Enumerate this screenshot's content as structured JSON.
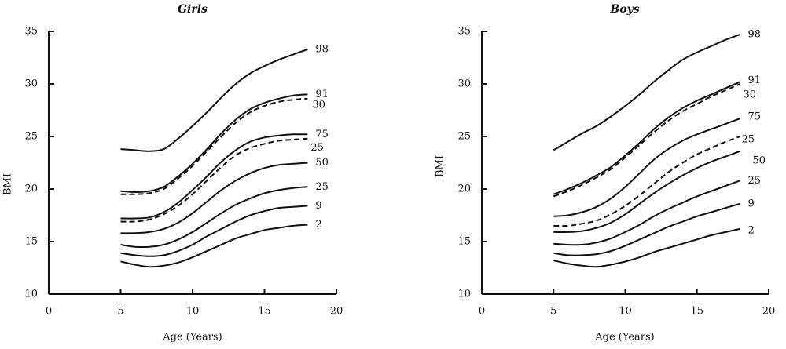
{
  "chart_data": [
    {
      "type": "line",
      "title": "Girls",
      "xlabel": "Age (Years)",
      "ylabel": "BMI",
      "xlim": [
        0,
        20
      ],
      "ylim": [
        10,
        35
      ],
      "x_ticks": [
        "0",
        "5",
        "10",
        "15",
        "20"
      ],
      "y_ticks": [
        "10",
        "15",
        "20",
        "25",
        "30",
        "35"
      ],
      "x": [
        5,
        6,
        7,
        8,
        9,
        10,
        11,
        12,
        13,
        14,
        15,
        16,
        17,
        18
      ],
      "series": [
        {
          "name": "98",
          "style": "solid",
          "values": [
            23.8,
            23.7,
            23.6,
            23.8,
            24.8,
            26.0,
            27.3,
            28.7,
            30.0,
            31.0,
            31.7,
            32.3,
            32.8,
            33.3
          ]
        },
        {
          "name": "91",
          "style": "solid",
          "values": [
            19.8,
            19.7,
            19.8,
            20.2,
            21.2,
            22.4,
            23.8,
            25.3,
            26.6,
            27.6,
            28.2,
            28.6,
            28.9,
            29.0
          ]
        },
        {
          "name": "30",
          "style": "dashed",
          "values": [
            19.5,
            19.5,
            19.6,
            20.0,
            21.0,
            22.2,
            23.6,
            25.0,
            26.3,
            27.3,
            27.9,
            28.3,
            28.5,
            28.6
          ]
        },
        {
          "name": "75",
          "style": "solid",
          "values": [
            17.2,
            17.2,
            17.3,
            17.8,
            18.7,
            19.9,
            21.2,
            22.6,
            23.7,
            24.5,
            24.9,
            25.1,
            25.2,
            25.2
          ]
        },
        {
          "name": "25",
          "style": "dashed",
          "values": [
            16.9,
            16.9,
            17.1,
            17.6,
            18.4,
            19.5,
            20.8,
            22.1,
            23.2,
            23.9,
            24.3,
            24.6,
            24.7,
            24.8
          ]
        },
        {
          "name": "50",
          "style": "solid",
          "values": [
            15.8,
            15.8,
            15.9,
            16.2,
            16.8,
            17.7,
            18.8,
            19.9,
            20.8,
            21.5,
            22.0,
            22.3,
            22.4,
            22.5
          ]
        },
        {
          "name": "25",
          "style": "solid",
          "values": [
            14.7,
            14.5,
            14.5,
            14.7,
            15.2,
            15.9,
            16.8,
            17.7,
            18.5,
            19.1,
            19.6,
            19.9,
            20.1,
            20.2
          ]
        },
        {
          "name": "9",
          "style": "solid",
          "values": [
            13.9,
            13.7,
            13.6,
            13.7,
            14.1,
            14.7,
            15.5,
            16.2,
            16.9,
            17.5,
            17.9,
            18.2,
            18.3,
            18.4
          ]
        },
        {
          "name": "2",
          "style": "solid",
          "values": [
            13.1,
            12.8,
            12.6,
            12.7,
            13.0,
            13.5,
            14.1,
            14.7,
            15.3,
            15.7,
            16.1,
            16.3,
            16.5,
            16.6
          ]
        }
      ]
    },
    {
      "type": "line",
      "title": "Boys",
      "xlabel": "Age (Years)",
      "ylabel": "BMI",
      "xlim": [
        0,
        20
      ],
      "ylim": [
        10,
        35
      ],
      "x_ticks": [
        "0",
        "5",
        "10",
        "15",
        "20"
      ],
      "y_ticks": [
        "10",
        "15",
        "20",
        "25",
        "30",
        "35"
      ],
      "x": [
        5,
        6,
        7,
        8,
        9,
        10,
        11,
        12,
        13,
        14,
        15,
        16,
        17,
        18
      ],
      "series": [
        {
          "name": "98",
          "style": "solid",
          "values": [
            23.7,
            24.5,
            25.3,
            26.0,
            26.9,
            27.9,
            29.0,
            30.2,
            31.3,
            32.3,
            33.0,
            33.6,
            34.2,
            34.7
          ]
        },
        {
          "name": "91",
          "style": "solid",
          "values": [
            19.5,
            20.0,
            20.6,
            21.3,
            22.1,
            23.2,
            24.4,
            25.7,
            26.8,
            27.7,
            28.4,
            29.0,
            29.6,
            30.2
          ]
        },
        {
          "name": "30",
          "style": "dashed",
          "values": [
            19.3,
            19.8,
            20.4,
            21.1,
            21.9,
            23.0,
            24.2,
            25.4,
            26.5,
            27.4,
            28.1,
            28.8,
            29.4,
            30.0
          ]
        },
        {
          "name": "75",
          "style": "solid",
          "values": [
            17.4,
            17.5,
            17.8,
            18.3,
            19.1,
            20.2,
            21.5,
            22.8,
            23.8,
            24.6,
            25.2,
            25.7,
            26.2,
            26.7
          ]
        },
        {
          "name": "25",
          "style": "dashed",
          "values": [
            16.5,
            16.5,
            16.7,
            17.0,
            17.6,
            18.4,
            19.4,
            20.5,
            21.6,
            22.5,
            23.3,
            23.9,
            24.5,
            25.0
          ]
        },
        {
          "name": "50",
          "style": "solid",
          "values": [
            15.9,
            15.9,
            16.0,
            16.3,
            16.8,
            17.6,
            18.6,
            19.6,
            20.5,
            21.3,
            22.0,
            22.6,
            23.1,
            23.6
          ]
        },
        {
          "name": "25",
          "style": "solid",
          "values": [
            14.8,
            14.7,
            14.7,
            14.9,
            15.3,
            15.9,
            16.6,
            17.4,
            18.1,
            18.7,
            19.3,
            19.8,
            20.3,
            20.8
          ]
        },
        {
          "name": "9",
          "style": "solid",
          "values": [
            13.9,
            13.7,
            13.7,
            13.8,
            14.1,
            14.6,
            15.2,
            15.8,
            16.4,
            16.9,
            17.4,
            17.8,
            18.2,
            18.6
          ]
        },
        {
          "name": "2",
          "style": "solid",
          "values": [
            13.2,
            12.9,
            12.7,
            12.6,
            12.8,
            13.1,
            13.5,
            14.0,
            14.4,
            14.8,
            15.2,
            15.6,
            15.9,
            16.2
          ]
        }
      ]
    }
  ]
}
